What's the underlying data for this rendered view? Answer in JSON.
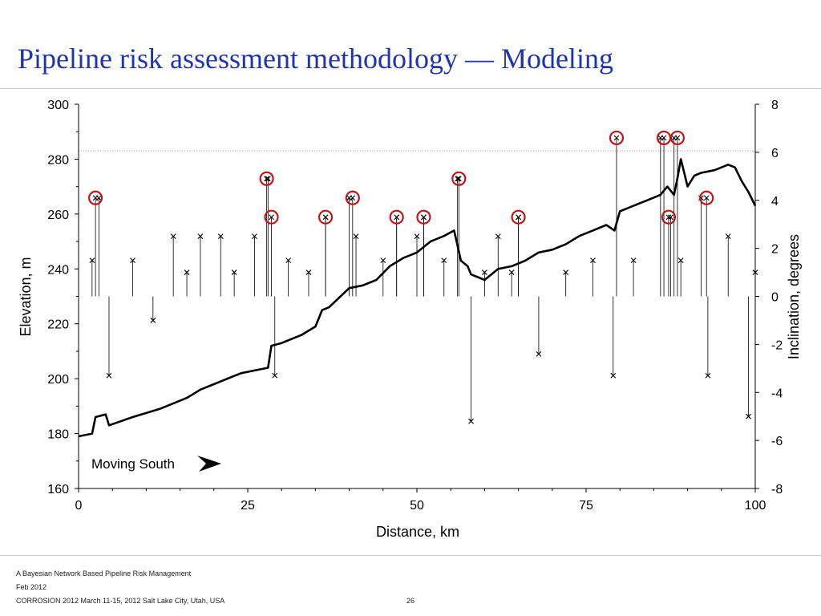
{
  "slide": {
    "title": "Pipeline risk assessment methodology —  Modeling"
  },
  "footer": {
    "line1": "A Bayesian Network Based Pipeline Risk Management",
    "line2": "Feb 2012",
    "line3": "CORROSION 2012 March 11-15, 2012 Salt Lake City, Utah, USA",
    "page_number": "26"
  },
  "chart_data": {
    "type": "line",
    "xlabel": "Distance, km",
    "ylabel": "Elevation, m",
    "y2label": "Inclination, degrees",
    "xlim": [
      0,
      100
    ],
    "ylim": [
      160,
      300
    ],
    "y2lim": [
      -8,
      8
    ],
    "x_ticks": [
      0,
      25,
      50,
      75,
      100
    ],
    "y_ticks": [
      160,
      180,
      200,
      220,
      240,
      260,
      280,
      300
    ],
    "y2_ticks": [
      -8,
      -6,
      -4,
      -2,
      0,
      2,
      4,
      6,
      8
    ],
    "annotation": "Moving South",
    "reference_line_elevation": 283,
    "colors": {
      "series": "#000000",
      "highlight": "#c0161b",
      "reference": "#9a9a9a"
    },
    "series": [
      {
        "axis": "left",
        "style": "line",
        "x": [
          0,
          2,
          2.5,
          4,
          4.5,
          8,
          12,
          16,
          18,
          20,
          22,
          24,
          26,
          28,
          28.5,
          30,
          33,
          35,
          36,
          37,
          40,
          42,
          44,
          46,
          48,
          50,
          52,
          54,
          55.5,
          56.5,
          57.5,
          58,
          60,
          62,
          64,
          66,
          68,
          70,
          72,
          74,
          76,
          78,
          79.2,
          80,
          82,
          84,
          86,
          87,
          88,
          88.5,
          89,
          90,
          91,
          92,
          94,
          96,
          97,
          98,
          99,
          100
        ],
        "values": [
          179,
          180,
          186,
          187,
          183,
          186,
          189,
          193,
          196,
          198,
          200,
          202,
          203,
          204,
          212,
          213,
          216,
          219,
          225,
          226,
          233,
          234,
          236,
          241,
          244,
          246,
          250,
          252,
          254,
          243,
          241,
          238,
          236,
          240,
          241,
          243,
          246,
          247,
          249,
          252,
          254,
          256,
          254,
          261,
          263,
          265,
          267,
          270,
          267,
          273,
          280,
          270,
          274,
          275,
          276,
          278,
          277,
          272,
          268,
          263
        ]
      },
      {
        "axis": "right",
        "style": "markers",
        "marker": "x",
        "note": "noise points plotted around 0 degrees",
        "x": [
          2,
          3,
          4.5,
          8,
          11,
          14,
          16,
          18,
          21,
          23,
          26,
          28,
          29,
          31,
          34,
          36.5,
          40,
          41,
          45,
          47,
          50,
          51,
          54,
          56,
          58,
          60,
          62,
          64,
          65,
          68,
          72,
          76,
          79,
          82,
          86,
          87.5,
          88,
          89,
          92,
          93,
          96,
          99,
          100
        ],
        "values": [
          1.5,
          4.1,
          -3.3,
          1.5,
          -1,
          2.5,
          1,
          2.5,
          2.5,
          1,
          2.5,
          4.9,
          -3.3,
          1.5,
          1,
          3.3,
          4.1,
          2.5,
          1.5,
          3.3,
          2.5,
          3.3,
          1.5,
          4.9,
          -5.2,
          1,
          2.5,
          1,
          3.3,
          -2.4,
          1,
          1.5,
          -3.3,
          1.5,
          6.6,
          3.3,
          6.6,
          1.5,
          4.1,
          -3.3,
          2.5,
          -5,
          1
        ]
      }
    ],
    "highlighted_points": [
      {
        "x": 2.5,
        "y2": 4.1
      },
      {
        "x": 27.8,
        "y2": 4.9
      },
      {
        "x": 28.5,
        "y2": 3.3
      },
      {
        "x": 36.5,
        "y2": 3.3
      },
      {
        "x": 40.5,
        "y2": 4.1
      },
      {
        "x": 47,
        "y2": 3.3
      },
      {
        "x": 51,
        "y2": 3.3
      },
      {
        "x": 56.2,
        "y2": 4.9
      },
      {
        "x": 65,
        "y2": 3.3
      },
      {
        "x": 79.5,
        "y2": 6.6
      },
      {
        "x": 86.5,
        "y2": 6.6
      },
      {
        "x": 87.2,
        "y2": 3.3
      },
      {
        "x": 88.5,
        "y2": 6.6
      },
      {
        "x": 92.8,
        "y2": 4.1
      }
    ]
  }
}
